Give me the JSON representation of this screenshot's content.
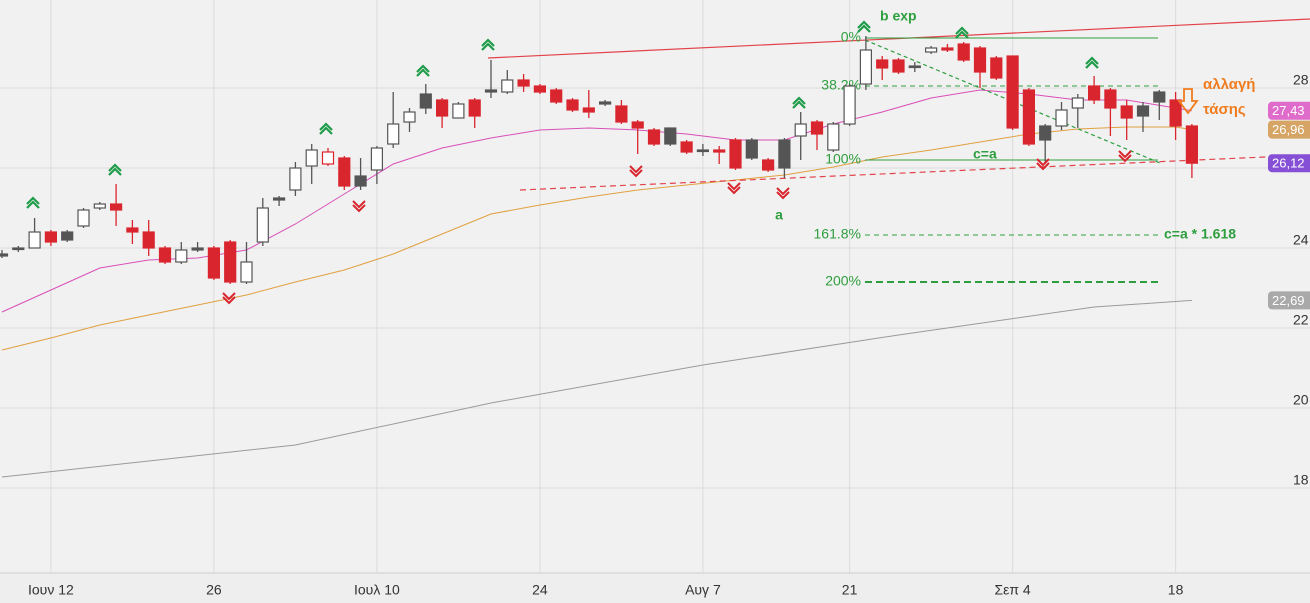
{
  "chart_data": {
    "type": "candlestick",
    "categories": [
      null,
      null,
      null,
      "Ιουν 12",
      null,
      null,
      null,
      null,
      null,
      null,
      null,
      null,
      null,
      "26",
      null,
      null,
      null,
      null,
      null,
      null,
      null,
      null,
      null,
      "Ιουλ 10",
      null,
      null,
      null,
      null,
      null,
      null,
      null,
      null,
      null,
      "24",
      null,
      null,
      null,
      null,
      null,
      null,
      null,
      null,
      null,
      "Αυγ 7",
      null,
      null,
      null,
      null,
      null,
      null,
      null,
      null,
      "21",
      null,
      null,
      null,
      null,
      null,
      null,
      null,
      null,
      null,
      "Σεπ 4",
      null,
      null,
      null,
      null,
      null,
      null,
      null,
      null,
      null,
      "18",
      null
    ],
    "open": [
      23.85,
      24.0,
      24.0,
      24.4,
      24.4,
      24.55,
      25.0,
      25.1,
      24.5,
      24.4,
      24.0,
      23.65,
      24.0,
      24.0,
      24.15,
      23.15,
      24.15,
      25.25,
      25.45,
      26.05,
      26.1,
      26.25,
      25.8,
      25.95,
      26.6,
      27.15,
      27.85,
      27.7,
      27.25,
      27.7,
      27.95,
      27.9,
      28.2,
      28.05,
      27.95,
      27.7,
      27.5,
      27.65,
      27.55,
      27.15,
      26.95,
      27.0,
      26.65,
      26.45,
      26.45,
      26.7,
      26.7,
      26.2,
      26.7,
      26.8,
      27.15,
      26.45,
      27.1,
      28.1,
      28.7,
      28.7,
      28.55,
      28.9,
      29.0,
      29.1,
      29.0,
      28.75,
      28.8,
      27.95,
      27.05,
      27.05,
      27.5,
      28.05,
      27.95,
      27.55,
      27.55,
      27.9,
      27.7,
      27.05
    ],
    "high": [
      23.95,
      24.05,
      24.75,
      24.45,
      24.45,
      25.0,
      25.15,
      25.6,
      24.7,
      24.7,
      24.05,
      24.15,
      24.15,
      24.05,
      24.2,
      24.15,
      25.25,
      25.3,
      26.15,
      26.6,
      26.5,
      26.3,
      26.25,
      26.55,
      27.9,
      27.5,
      28.1,
      27.75,
      27.65,
      27.75,
      28.7,
      28.45,
      28.35,
      28.1,
      28.0,
      27.75,
      27.95,
      27.7,
      27.7,
      27.2,
      27.0,
      27.0,
      26.7,
      26.6,
      26.55,
      26.75,
      26.75,
      26.25,
      26.75,
      27.4,
      27.2,
      27.15,
      28.1,
      29.3,
      28.8,
      28.75,
      28.65,
      29.05,
      29.1,
      29.15,
      29.05,
      28.8,
      28.8,
      28.0,
      27.1,
      27.65,
      27.85,
      28.3,
      28.0,
      27.7,
      27.65,
      27.95,
      27.9,
      27.1
    ],
    "low": [
      23.75,
      23.9,
      24.0,
      24.05,
      24.15,
      24.5,
      24.95,
      24.55,
      24.1,
      23.8,
      23.6,
      23.6,
      23.9,
      23.2,
      23.1,
      23.1,
      24.05,
      25.05,
      25.3,
      25.6,
      26.05,
      25.45,
      25.45,
      25.6,
      26.5,
      26.9,
      27.35,
      27.0,
      27.25,
      27.0,
      27.75,
      27.85,
      27.9,
      27.85,
      27.6,
      27.4,
      27.25,
      27.55,
      27.1,
      26.35,
      26.55,
      26.55,
      26.35,
      26.3,
      26.1,
      25.95,
      26.2,
      25.9,
      25.75,
      26.2,
      26.45,
      26.4,
      27.05,
      27.95,
      28.2,
      28.35,
      28.4,
      28.85,
      28.9,
      28.65,
      28.0,
      28.2,
      26.95,
      26.55,
      26.1,
      26.95,
      27.0,
      27.6,
      26.8,
      26.7,
      26.9,
      27.2,
      26.7,
      25.75
    ],
    "close": [
      23.8,
      24.0,
      24.4,
      24.15,
      24.2,
      24.95,
      25.1,
      24.95,
      24.4,
      24.0,
      23.65,
      23.95,
      23.95,
      23.25,
      23.15,
      23.65,
      25.0,
      25.2,
      26.0,
      26.45,
      26.4,
      25.55,
      25.55,
      26.5,
      27.1,
      27.4,
      27.5,
      27.3,
      27.6,
      27.3,
      27.9,
      28.2,
      28.05,
      27.9,
      27.65,
      27.45,
      27.4,
      27.6,
      27.15,
      27.0,
      26.6,
      26.6,
      26.4,
      26.45,
      26.4,
      26.0,
      26.25,
      25.95,
      26.0,
      27.1,
      26.85,
      27.1,
      28.05,
      28.95,
      28.5,
      28.4,
      28.55,
      29.0,
      28.95,
      28.7,
      28.4,
      28.25,
      27.0,
      26.6,
      26.7,
      27.45,
      27.75,
      27.7,
      27.5,
      27.25,
      27.3,
      27.65,
      27.05,
      26.12
    ],
    "up_color": "#555555",
    "down_color": "#d9262e",
    "series": [
      {
        "color": "#d94fb8",
        "x": [
          0,
          3,
          6,
          9,
          12,
          15,
          18,
          21,
          24,
          27,
          30,
          33,
          36,
          39,
          42,
          45,
          48,
          51,
          54,
          57,
          60,
          63,
          66,
          69,
          72,
          73
        ],
        "values": [
          22.4,
          22.95,
          23.5,
          23.7,
          23.75,
          23.95,
          24.6,
          25.35,
          26.1,
          26.5,
          26.75,
          26.95,
          27.0,
          26.95,
          26.85,
          26.7,
          26.7,
          27.1,
          27.4,
          27.75,
          27.95,
          27.85,
          27.7,
          27.7,
          27.5,
          27.43
        ]
      },
      {
        "color": "#e0a040",
        "x": [
          0,
          3,
          6,
          9,
          12,
          15,
          18,
          21,
          24,
          27,
          30,
          33,
          36,
          39,
          42,
          45,
          48,
          51,
          54,
          57,
          60,
          63,
          66,
          69,
          72,
          73
        ],
        "values": [
          21.45,
          21.75,
          22.075,
          22.325,
          22.575,
          22.825,
          23.15,
          23.45,
          23.85,
          24.35,
          24.85,
          25.075,
          25.275,
          25.45,
          25.575,
          25.7,
          25.825,
          26.025,
          26.275,
          26.45,
          26.65,
          26.85,
          26.975,
          27.025,
          27.025,
          26.96
        ]
      },
      {
        "color": "#9a9a9a",
        "x": [
          0,
          18,
          30,
          43,
          55,
          67,
          73
        ],
        "values": [
          18.275,
          19.075,
          20.125,
          21.075,
          21.825,
          22.525,
          22.69
        ]
      }
    ],
    "price_tags": [
      {
        "value": 27.43,
        "label": "27,43",
        "color": "#df6ccb"
      },
      {
        "value": 26.96,
        "label": "26,96",
        "color": "#d6a464"
      },
      {
        "value": 26.12,
        "label": "26,12",
        "color": "#8650d6"
      },
      {
        "value": 22.69,
        "label": "22,69",
        "color": "#a9a9a9"
      }
    ],
    "fib_levels": [
      {
        "label": "0%",
        "value": 29.25
      },
      {
        "label": "38.2%",
        "value": 28.05
      },
      {
        "label": "100%",
        "value": 26.2
      },
      {
        "label": "161.8%",
        "value": 24.325
      },
      {
        "label": "200%",
        "value": 23.15
      }
    ],
    "annotations": [
      "b exp",
      "a",
      "c=a",
      "c=a * 1.618",
      "αλλαγή",
      "τάσης"
    ],
    "ylim": [
      15.875,
      30.2
    ],
    "yticks": [
      18,
      20,
      22,
      24,
      26,
      28
    ],
    "grid": true
  }
}
